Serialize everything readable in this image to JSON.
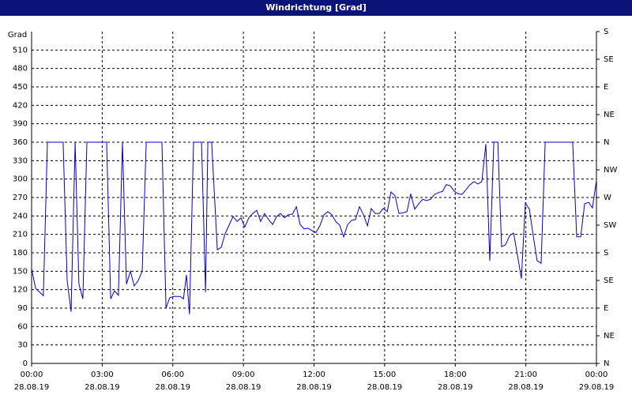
{
  "chart_data": {
    "type": "line",
    "title": "Windrichtung [Grad]",
    "y_label": "Grad",
    "xlim": [
      0,
      24
    ],
    "xticks": [
      {
        "value": 0,
        "label": "00:00",
        "date": "28.08.19"
      },
      {
        "value": 3,
        "label": "03:00",
        "date": "28.08.19"
      },
      {
        "value": 6,
        "label": "06:00",
        "date": "28.08.19"
      },
      {
        "value": 9,
        "label": "09:00",
        "date": "28.08.19"
      },
      {
        "value": 12,
        "label": "12:00",
        "date": "28.08.19"
      },
      {
        "value": 15,
        "label": "15:00",
        "date": "28.08.19"
      },
      {
        "value": 18,
        "label": "18:00",
        "date": "28.08.19"
      },
      {
        "value": 21,
        "label": "21:00",
        "date": "28.08.19"
      },
      {
        "value": 24,
        "label": "00:00",
        "date": "29.08.19"
      }
    ],
    "ylim": [
      0,
      540
    ],
    "yticks": [
      0,
      30,
      60,
      90,
      120,
      150,
      180,
      210,
      240,
      270,
      300,
      330,
      360,
      390,
      420,
      450,
      480,
      510
    ],
    "y2lim": [
      0,
      540
    ],
    "y2ticks": [
      {
        "value": 0,
        "label": "N"
      },
      {
        "value": 45,
        "label": "NE"
      },
      {
        "value": 90,
        "label": "E"
      },
      {
        "value": 135,
        "label": "SE"
      },
      {
        "value": 180,
        "label": "S"
      },
      {
        "value": 225,
        "label": "SW"
      },
      {
        "value": 270,
        "label": "W"
      },
      {
        "value": 315,
        "label": "NW"
      },
      {
        "value": 360,
        "label": "N"
      },
      {
        "value": 405,
        "label": "NE"
      },
      {
        "value": 450,
        "label": "E"
      },
      {
        "value": 495,
        "label": "SE"
      },
      {
        "value": 540,
        "label": "S"
      }
    ],
    "grid": true,
    "series": [
      {
        "color": "#0000c8",
        "x": [
          0,
          0.17,
          0.34,
          0.5,
          0.67,
          1.34,
          1.51,
          1.68,
          1.85,
          2.01,
          2.18,
          2.35,
          3.19,
          3.36,
          3.52,
          3.69,
          3.86,
          4.03,
          4.2,
          4.36,
          4.53,
          4.7,
          4.87,
          5.54,
          5.71,
          5.87,
          6.04,
          6.31,
          6.45,
          6.58,
          6.71,
          6.88,
          7.22,
          7.39,
          7.49,
          7.65,
          7.89,
          8.06,
          8.22,
          8.39,
          8.56,
          8.73,
          8.9,
          9.06,
          9.23,
          9.4,
          9.57,
          9.73,
          9.9,
          10.07,
          10.24,
          10.41,
          10.57,
          10.74,
          10.91,
          11.08,
          11.25,
          11.41,
          11.58,
          11.75,
          11.92,
          12.08,
          12.25,
          12.42,
          12.59,
          12.76,
          12.92,
          13.09,
          13.26,
          13.43,
          13.6,
          13.76,
          13.93,
          14.1,
          14.27,
          14.43,
          14.6,
          14.77,
          14.94,
          15.11,
          15.27,
          15.44,
          15.61,
          15.78,
          15.95,
          16.11,
          16.28,
          16.45,
          16.62,
          16.78,
          16.95,
          17.12,
          17.29,
          17.46,
          17.62,
          17.79,
          17.96,
          18.13,
          18.29,
          18.46,
          18.63,
          18.8,
          18.97,
          19.13,
          19.3,
          19.47,
          19.64,
          19.81,
          19.97,
          20.14,
          20.31,
          20.48,
          20.64,
          20.81,
          20.98,
          21.15,
          21.32,
          21.48,
          21.65,
          21.82,
          22.99,
          23.16,
          23.33,
          23.5,
          23.67,
          23.83,
          24
        ],
        "values": [
          154,
          122,
          116,
          110,
          360,
          360,
          135,
          84,
          360,
          129,
          105,
          360,
          360,
          105,
          118,
          111,
          360,
          129,
          150,
          126,
          135,
          150,
          360,
          360,
          90,
          107,
          109,
          109,
          105,
          144,
          80,
          360,
          360,
          116,
          360,
          360,
          185,
          189,
          211,
          225,
          239,
          231,
          237,
          222,
          237,
          244,
          249,
          231,
          244,
          234,
          226,
          239,
          244,
          237,
          242,
          243,
          255,
          226,
          219,
          220,
          216,
          213,
          224,
          242,
          247,
          242,
          231,
          225,
          206,
          226,
          233,
          234,
          255,
          242,
          224,
          252,
          244,
          244,
          252,
          247,
          279,
          273,
          244,
          245,
          247,
          276,
          251,
          260,
          267,
          265,
          267,
          275,
          278,
          280,
          291,
          289,
          280,
          276,
          275,
          283,
          291,
          296,
          292,
          296,
          357,
          167,
          360,
          360,
          190,
          193,
          208,
          212,
          177,
          138,
          261,
          251,
          206,
          167,
          163,
          360,
          360,
          206,
          206,
          260,
          262,
          253,
          298
        ]
      }
    ]
  }
}
